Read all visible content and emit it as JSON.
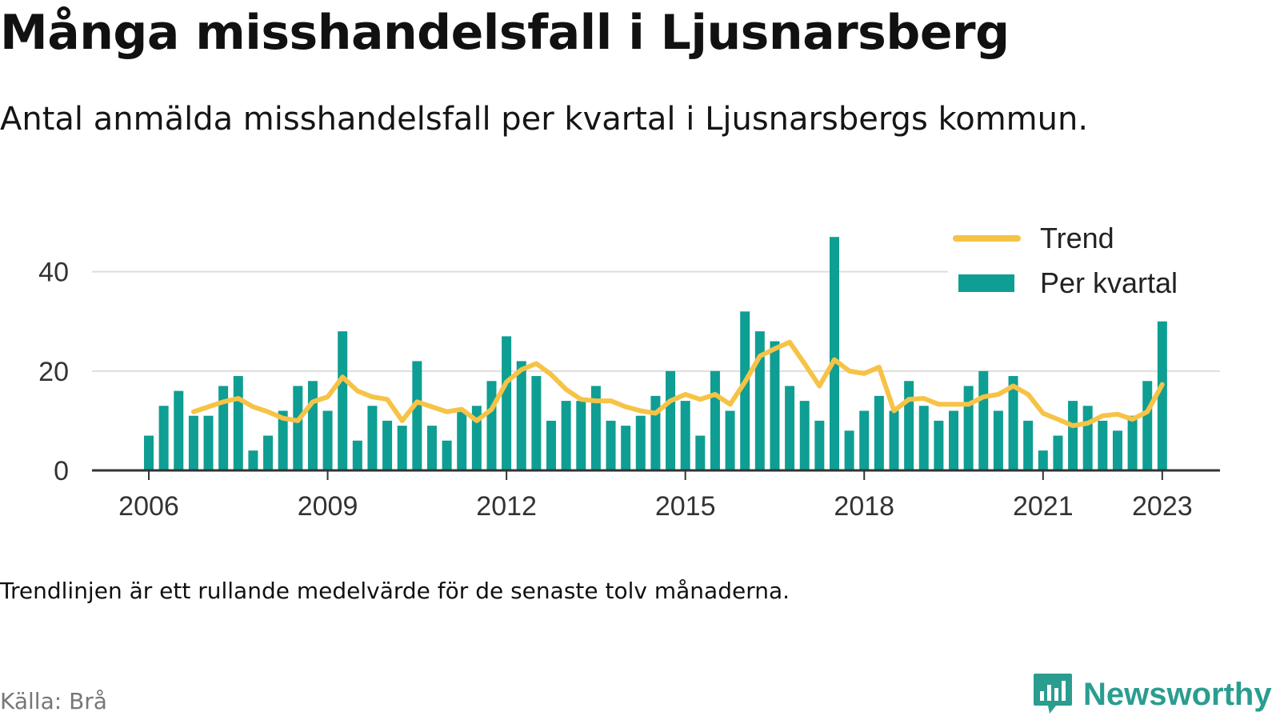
{
  "header": {
    "title": "Många misshandelsfall i Ljusnarsberg",
    "subtitle": "Antal anmälda misshandelsfall per kvartal i Ljusnarsbergs kommun."
  },
  "footer": {
    "note": "Trendlinjen är ett rullande medelvärde för de senaste tolv månaderna.",
    "source": "Källa: Brå",
    "brand": "Newsworthy"
  },
  "colors": {
    "bar": "#0f9e93",
    "trend": "#f6c346",
    "grid": "#dddddd",
    "axis": "#333333",
    "brand": "#2a9d8f"
  },
  "chart_data": {
    "type": "bar",
    "x_start": "2006 Q1",
    "x_tick_labels": [
      "2006",
      "2009",
      "2012",
      "2015",
      "2018",
      "2021",
      "2023"
    ],
    "y_tick_labels": [
      "0",
      "20",
      "40"
    ],
    "ylim": [
      0,
      48
    ],
    "grid": true,
    "legend_position": "top-right",
    "series": [
      {
        "name": "Per kvartal",
        "type": "bar",
        "values": [
          7,
          13,
          16,
          11,
          11,
          17,
          19,
          4,
          7,
          12,
          17,
          18,
          12,
          28,
          6,
          13,
          10,
          9,
          22,
          9,
          6,
          12,
          13,
          18,
          27,
          22,
          19,
          10,
          14,
          14,
          17,
          10,
          9,
          11,
          15,
          20,
          14,
          7,
          20,
          12,
          32,
          28,
          26,
          17,
          14,
          10,
          47,
          8,
          12,
          15,
          12,
          18,
          13,
          10,
          12,
          17,
          20,
          12,
          19,
          10,
          4,
          7,
          14,
          13,
          10,
          8,
          11,
          18,
          30
        ]
      },
      {
        "name": "Trend",
        "type": "line",
        "values": [
          null,
          null,
          null,
          11.8,
          12.8,
          13.8,
          14.5,
          12.8,
          11.8,
          10.5,
          10.0,
          13.8,
          14.8,
          18.8,
          16.0,
          14.8,
          14.3,
          10.0,
          13.8,
          12.8,
          11.8,
          12.3,
          10.0,
          12.3,
          17.8,
          20.3,
          21.5,
          19.3,
          16.3,
          14.3,
          14.0,
          14.0,
          12.8,
          12.0,
          11.5,
          14.0,
          15.3,
          14.3,
          15.3,
          13.3,
          17.8,
          23.0,
          24.5,
          25.8,
          21.5,
          17.0,
          22.3,
          20.0,
          19.5,
          20.8,
          12.0,
          14.3,
          14.5,
          13.3,
          13.3,
          13.3,
          14.8,
          15.3,
          17.0,
          15.3,
          11.5,
          10.3,
          9.0,
          9.5,
          11.0,
          11.3,
          10.3,
          11.8,
          17.3
        ]
      }
    ]
  }
}
